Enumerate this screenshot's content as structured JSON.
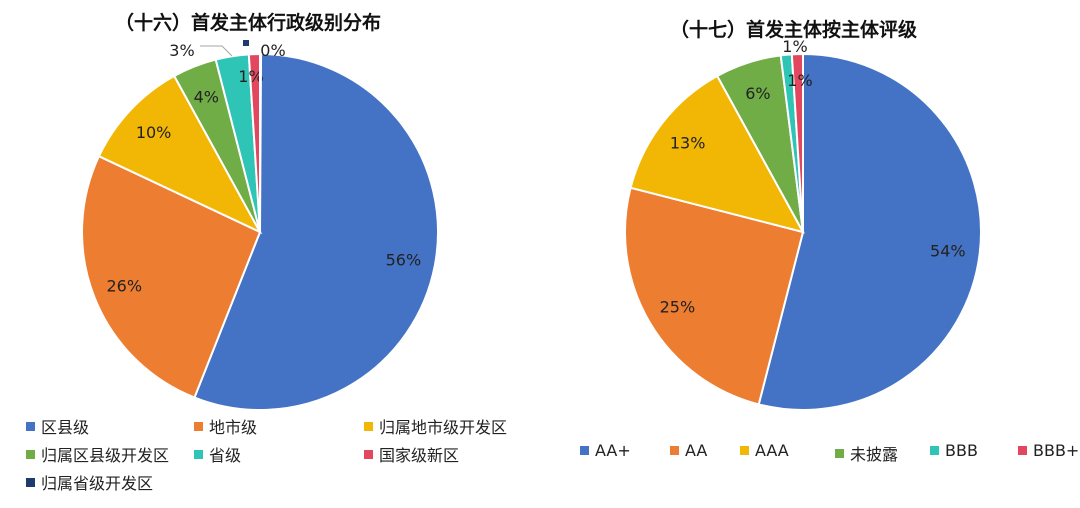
{
  "chart_data": [
    {
      "type": "pie",
      "title": "（十六）首发主体行政级别分布",
      "labels": [
        "区县级",
        "地市级",
        "归属地市级开发区",
        "归属区县级开发区",
        "省级",
        "国家级新区",
        "归属省级开发区"
      ],
      "values": [
        56,
        26,
        10,
        4,
        3,
        1,
        0
      ],
      "value_labels": [
        "56%",
        "26%",
        "10%",
        "4%",
        "3%",
        "1%",
        "0%"
      ],
      "colors": [
        "#4472C4",
        "#ED7D31",
        "#F2B705",
        "#70AD47",
        "#2EC4B6",
        "#E3475F",
        "#1F3A6E"
      ],
      "legend_position": "bottom"
    },
    {
      "type": "pie",
      "title": "（十七）首发主体按主体评级",
      "labels": [
        "AA+",
        "AA",
        "AAA",
        "未披露",
        "BBB",
        "BBB+"
      ],
      "values": [
        54,
        25,
        13,
        6,
        1,
        1
      ],
      "value_labels": [
        "54%",
        "25%",
        "13%",
        "6%",
        "1%",
        "1%"
      ],
      "colors": [
        "#4472C4",
        "#ED7D31",
        "#F2B705",
        "#70AD47",
        "#2EC4B6",
        "#E3475F"
      ],
      "legend_position": "bottom"
    }
  ]
}
